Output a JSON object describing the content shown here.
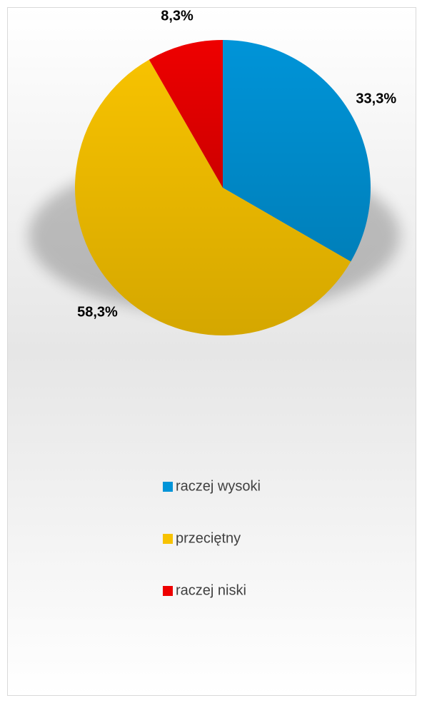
{
  "chart_data": {
    "type": "pie",
    "categories": [
      "raczej wysoki",
      "przeciętny",
      "raczej niski"
    ],
    "values": [
      33.3,
      58.3,
      8.3
    ],
    "value_labels": [
      "33,3%",
      "58,3%",
      "8,3%"
    ],
    "colors": [
      "#0094d8",
      "#f7c200",
      "#ee0000"
    ],
    "legend": "bottom"
  }
}
